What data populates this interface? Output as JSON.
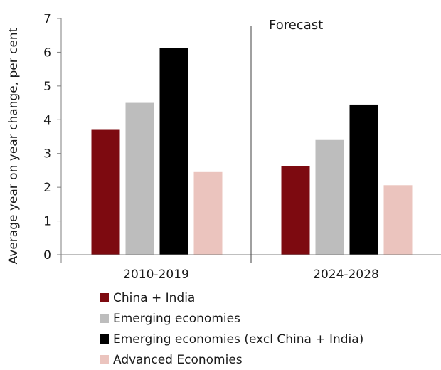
{
  "chart_data": {
    "type": "bar",
    "title": "",
    "xlabel": "",
    "ylabel": "Average year on year change, per cent",
    "ylim": [
      0,
      7
    ],
    "yticks": [
      0,
      1,
      2,
      3,
      4,
      5,
      6,
      7
    ],
    "categories": [
      "2010-2019",
      "2024-2028"
    ],
    "annotation": "Forecast",
    "grid": false,
    "legend_position": "bottom",
    "series": [
      {
        "name": "China + India",
        "color": "#7d0a10",
        "values": [
          3.7,
          2.62
        ]
      },
      {
        "name": "Emerging economies",
        "color": "#bdbdbd",
        "values": [
          4.5,
          3.4
        ]
      },
      {
        "name": "Emerging economies (excl China + India)",
        "color": "#000000",
        "values": [
          6.12,
          4.45
        ]
      },
      {
        "name": "Advanced Economies",
        "color": "#ebc4be",
        "values": [
          2.45,
          2.06
        ]
      }
    ]
  }
}
